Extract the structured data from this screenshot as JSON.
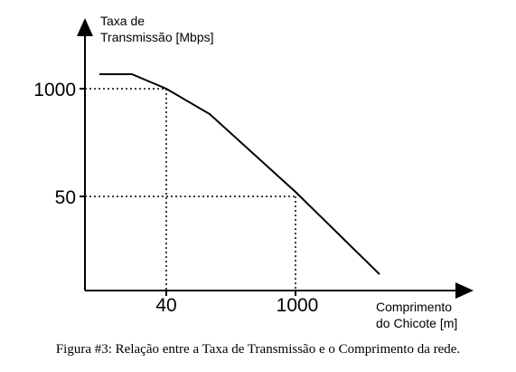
{
  "caption": "Figura #3: Relação entre a Taxa de Transmissão e o Comprimento da rede.",
  "chart_data": {
    "type": "line",
    "ylabel": [
      "Taxa de",
      "Transmissão [Mbps]"
    ],
    "xlabel": [
      "Comprimento",
      "do Chicote [m]"
    ],
    "x_ticks": [
      {
        "label": "40"
      },
      {
        "label": "1000"
      }
    ],
    "y_ticks": [
      {
        "label": "1000"
      },
      {
        "label": "50"
      }
    ],
    "grid": false,
    "reference_lines": "dotted lines from the x-axis ticks and y-axis ticks to the curve"
  }
}
